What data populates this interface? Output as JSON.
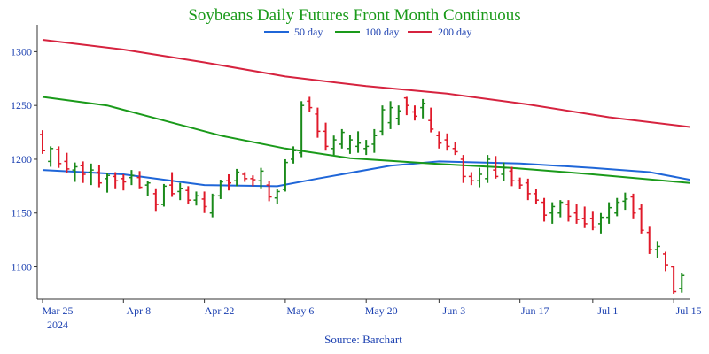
{
  "chart_data": {
    "type": "ohlc",
    "title": "Soybeans Daily Futures Front Month Continuous",
    "source": "Source: Barchart",
    "ylim": [
      1070,
      1325
    ],
    "y_ticks": [
      1100,
      1150,
      1200,
      1250,
      1300
    ],
    "x_tick_labels": [
      {
        "day": 0,
        "label": "Mar 25",
        "sublabel": "2024"
      },
      {
        "day": 10,
        "label": "Apr 8"
      },
      {
        "day": 20,
        "label": "Apr 22"
      },
      {
        "day": 30,
        "label": "May 6"
      },
      {
        "day": 40,
        "label": "May 20"
      },
      {
        "day": 49,
        "label": "Jun 3"
      },
      {
        "day": 59,
        "label": "Jun 17"
      },
      {
        "day": 68,
        "label": "Jul 1"
      },
      {
        "day": 78,
        "label": "Jul 15"
      }
    ],
    "ohlc": [
      [
        1223,
        1227,
        1205,
        1208
      ],
      [
        1198,
        1212,
        1193,
        1210
      ],
      [
        1209,
        1212,
        1192,
        1196
      ],
      [
        1198,
        1206,
        1187,
        1191
      ],
      [
        1190,
        1197,
        1179,
        1193
      ],
      [
        1194,
        1198,
        1178,
        1186
      ],
      [
        1188,
        1196,
        1176,
        1190
      ],
      [
        1188,
        1195,
        1174,
        1178
      ],
      [
        1182,
        1187,
        1169,
        1185
      ],
      [
        1184,
        1188,
        1173,
        1180
      ],
      [
        1182,
        1186,
        1171,
        1179
      ],
      [
        1183,
        1190,
        1176,
        1185
      ],
      [
        1183,
        1189,
        1173,
        1174
      ],
      [
        1176,
        1180,
        1166,
        1178
      ],
      [
        1168,
        1173,
        1152,
        1158
      ],
      [
        1158,
        1177,
        1156,
        1175
      ],
      [
        1176,
        1188,
        1165,
        1168
      ],
      [
        1170,
        1178,
        1162,
        1173
      ],
      [
        1171,
        1175,
        1158,
        1162
      ],
      [
        1162,
        1170,
        1157,
        1166
      ],
      [
        1163,
        1170,
        1150,
        1156
      ],
      [
        1150,
        1168,
        1146,
        1166
      ],
      [
        1166,
        1181,
        1163,
        1179
      ],
      [
        1180,
        1186,
        1171,
        1178
      ],
      [
        1180,
        1191,
        1175,
        1188
      ],
      [
        1186,
        1188,
        1179,
        1182
      ],
      [
        1182,
        1185,
        1175,
        1181
      ],
      [
        1180,
        1192,
        1173,
        1189
      ],
      [
        1176,
        1180,
        1161,
        1165
      ],
      [
        1164,
        1172,
        1158,
        1170
      ],
      [
        1172,
        1200,
        1170,
        1197
      ],
      [
        1200,
        1212,
        1196,
        1208
      ],
      [
        1206,
        1254,
        1202,
        1250
      ],
      [
        1254,
        1258,
        1244,
        1248
      ],
      [
        1242,
        1248,
        1220,
        1226
      ],
      [
        1226,
        1234,
        1208,
        1212
      ],
      [
        1210,
        1222,
        1204,
        1218
      ],
      [
        1214,
        1228,
        1210,
        1225
      ],
      [
        1210,
        1223,
        1205,
        1218
      ],
      [
        1212,
        1226,
        1206,
        1215
      ],
      [
        1210,
        1218,
        1204,
        1212
      ],
      [
        1214,
        1228,
        1206,
        1222
      ],
      [
        1226,
        1250,
        1222,
        1246
      ],
      [
        1234,
        1254,
        1228,
        1248
      ],
      [
        1238,
        1250,
        1232,
        1245
      ],
      [
        1257,
        1258,
        1241,
        1250
      ],
      [
        1244,
        1250,
        1236,
        1240
      ],
      [
        1248,
        1256,
        1238,
        1252
      ],
      [
        1236,
        1248,
        1225,
        1228
      ],
      [
        1222,
        1226,
        1210,
        1215
      ],
      [
        1218,
        1224,
        1208,
        1212
      ],
      [
        1210,
        1216,
        1204,
        1207
      ],
      [
        1200,
        1204,
        1178,
        1184
      ],
      [
        1184,
        1188,
        1176,
        1180
      ],
      [
        1180,
        1192,
        1174,
        1186
      ],
      [
        1182,
        1204,
        1178,
        1200
      ],
      [
        1190,
        1203,
        1182,
        1184
      ],
      [
        1186,
        1197,
        1180,
        1192
      ],
      [
        1189,
        1193,
        1175,
        1180
      ],
      [
        1180,
        1183,
        1172,
        1176
      ],
      [
        1178,
        1182,
        1162,
        1168
      ],
      [
        1168,
        1172,
        1158,
        1162
      ],
      [
        1160,
        1164,
        1142,
        1148
      ],
      [
        1150,
        1160,
        1140,
        1156
      ],
      [
        1150,
        1162,
        1146,
        1160
      ],
      [
        1158,
        1162,
        1142,
        1147
      ],
      [
        1150,
        1158,
        1140,
        1144
      ],
      [
        1145,
        1156,
        1136,
        1140
      ],
      [
        1145,
        1152,
        1134,
        1137
      ],
      [
        1140,
        1150,
        1131,
        1146
      ],
      [
        1146,
        1160,
        1140,
        1155
      ],
      [
        1150,
        1164,
        1147,
        1160
      ],
      [
        1161,
        1169,
        1153,
        1163
      ],
      [
        1165,
        1168,
        1145,
        1150
      ],
      [
        1154,
        1158,
        1131,
        1134
      ],
      [
        1132,
        1138,
        1112,
        1116
      ],
      [
        1116,
        1124,
        1108,
        1119
      ],
      [
        1112,
        1114,
        1096,
        1102
      ],
      [
        1100,
        1101,
        1075,
        1077
      ],
      [
        1080,
        1094,
        1076,
        1092
      ]
    ],
    "series": [
      {
        "name": "50 day",
        "color": "#1f66d8",
        "points": [
          [
            0,
            1190
          ],
          [
            10,
            1186
          ],
          [
            20,
            1176
          ],
          [
            29,
            1175
          ],
          [
            34,
            1182
          ],
          [
            43,
            1194
          ],
          [
            49,
            1198
          ],
          [
            59,
            1196
          ],
          [
            68,
            1192
          ],
          [
            75,
            1188
          ],
          [
            80,
            1181
          ]
        ]
      },
      {
        "name": "100 day",
        "color": "#1a9a1a",
        "points": [
          [
            0,
            1258
          ],
          [
            8,
            1250
          ],
          [
            15,
            1236
          ],
          [
            22,
            1222
          ],
          [
            30,
            1210
          ],
          [
            38,
            1201
          ],
          [
            48,
            1196
          ],
          [
            58,
            1192
          ],
          [
            68,
            1186
          ],
          [
            80,
            1178
          ]
        ]
      },
      {
        "name": "200 day",
        "color": "#d6233f",
        "points": [
          [
            0,
            1311
          ],
          [
            10,
            1302
          ],
          [
            20,
            1290
          ],
          [
            30,
            1277
          ],
          [
            40,
            1268
          ],
          [
            50,
            1261
          ],
          [
            60,
            1251
          ],
          [
            70,
            1239
          ],
          [
            80,
            1230
          ]
        ]
      }
    ],
    "up_color": "#1a8a1a",
    "down_color": "#e01a2a",
    "axis_color": "#333333",
    "grid": false,
    "legend_position": "top-center"
  }
}
